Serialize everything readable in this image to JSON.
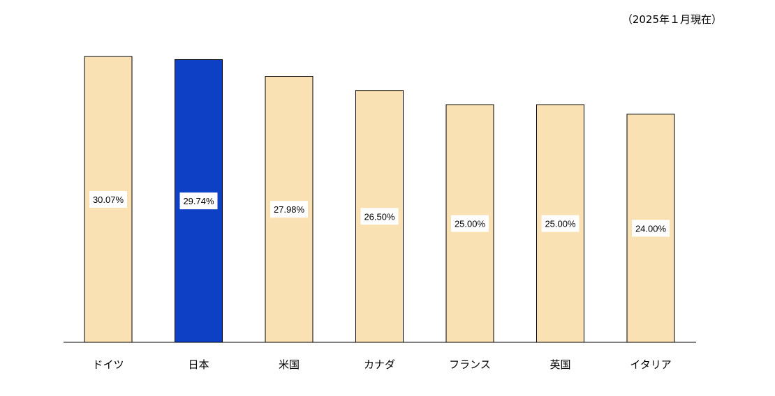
{
  "note": "（2025年１月現在）",
  "colors": {
    "bar_default": "#f9e1b3",
    "bar_highlight": "#0d40c4",
    "bar_stroke": "#000000",
    "axis": "#000000",
    "label_bg": "#ffffff"
  },
  "chart_data": {
    "type": "bar",
    "title": "",
    "xlabel": "",
    "ylabel": "",
    "ylim": [
      0,
      30.07
    ],
    "grid": false,
    "legend": "none",
    "categories": [
      "ドイツ",
      "日本",
      "米国",
      "カナダ",
      "フランス",
      "英国",
      "イタリア"
    ],
    "values": [
      30.07,
      29.74,
      27.98,
      26.5,
      25.0,
      25.0,
      24.0
    ],
    "data_labels": [
      "30.07%",
      "29.74%",
      "27.98%",
      "26.50%",
      "25.00%",
      "25.00%",
      "24.00%"
    ],
    "highlight_index": 1
  }
}
